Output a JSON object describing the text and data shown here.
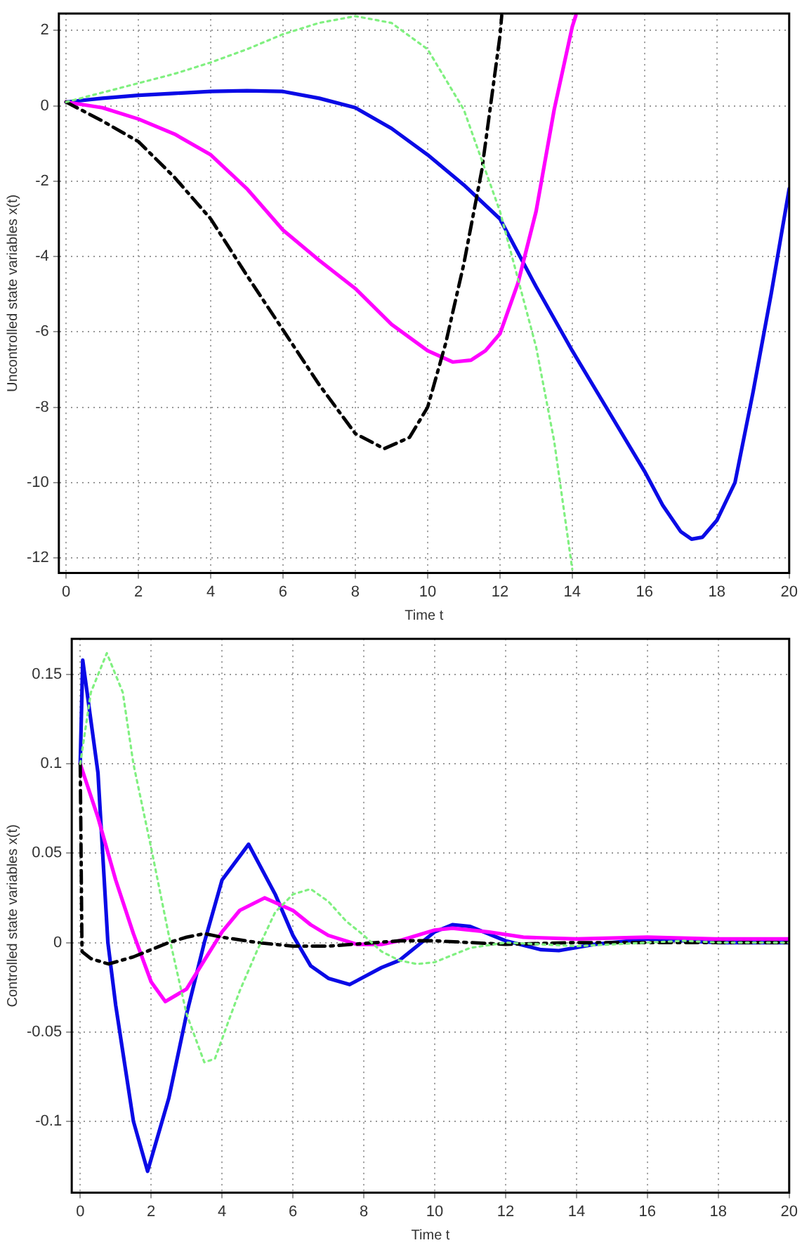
{
  "chart_data": [
    {
      "type": "line",
      "xlabel": "Time t",
      "ylabel": "Uncontrolled state variables x(t)",
      "xlim": [
        -0.2,
        20
      ],
      "ylim": [
        -12.4,
        2.45
      ],
      "xticks": [
        0,
        2,
        4,
        6,
        8,
        10,
        12,
        14,
        16,
        18,
        20
      ],
      "yticks": [
        -12,
        -10,
        -8,
        -6,
        -4,
        -2,
        0,
        2
      ],
      "grid": true,
      "legend": false,
      "series": [
        {
          "color": "#80f080",
          "line_style": "dotted",
          "x": [
            0,
            1,
            2,
            3,
            4,
            5,
            6,
            7,
            8,
            9,
            10,
            11,
            12,
            13,
            13.5,
            14
          ],
          "values": [
            0.1,
            0.35,
            0.6,
            0.85,
            1.15,
            1.5,
            1.9,
            2.2,
            2.38,
            2.2,
            1.5,
            -0.1,
            -2.8,
            -6.4,
            -8.9,
            -12.3
          ]
        },
        {
          "color": "#000000",
          "line_style": "dashed",
          "x": [
            0,
            1,
            2,
            3,
            4,
            5,
            6,
            7,
            8,
            8.8,
            9.5,
            10,
            10.5,
            11,
            11.5,
            12,
            12.05
          ],
          "values": [
            0.1,
            -0.4,
            -0.95,
            -1.9,
            -3.0,
            -4.5,
            -5.95,
            -7.4,
            -8.7,
            -9.1,
            -8.8,
            -8.0,
            -6.3,
            -4.2,
            -1.7,
            1.85,
            2.4
          ]
        },
        {
          "color": "#ff00ff",
          "line_style": "solid",
          "x": [
            0,
            1,
            2,
            3,
            4,
            5,
            6,
            7,
            8,
            9,
            10,
            10.7,
            11.2,
            11.6,
            12,
            12.5,
            13,
            13.5,
            14,
            14.1
          ],
          "values": [
            0.1,
            -0.05,
            -0.35,
            -0.75,
            -1.3,
            -2.2,
            -3.3,
            -4.1,
            -4.85,
            -5.8,
            -6.5,
            -6.8,
            -6.75,
            -6.5,
            -6.05,
            -4.7,
            -2.8,
            -0.1,
            2.1,
            2.4
          ]
        },
        {
          "color": "#0a0ae6",
          "line_style": "solid",
          "x": [
            0,
            1,
            2,
            3,
            4,
            5,
            6,
            7,
            8,
            9,
            10,
            11,
            12,
            13,
            14,
            15,
            16,
            16.5,
            17,
            17.3,
            17.6,
            18,
            18.5,
            19,
            19.5,
            20
          ],
          "values": [
            0.1,
            0.2,
            0.28,
            0.33,
            0.38,
            0.4,
            0.38,
            0.2,
            -0.05,
            -0.6,
            -1.3,
            -2.1,
            -3.0,
            -4.8,
            -6.5,
            -8.1,
            -9.7,
            -10.6,
            -11.3,
            -11.5,
            -11.45,
            -11.0,
            -10.0,
            -7.6,
            -5.0,
            -2.2
          ]
        }
      ]
    },
    {
      "type": "line",
      "xlabel": "Time t",
      "ylabel": "Controlled state variables x(t)",
      "xlim": [
        -0.24,
        20
      ],
      "ylim": [
        -0.14,
        0.17
      ],
      "xticks": [
        0,
        2,
        4,
        6,
        8,
        10,
        12,
        14,
        16,
        18,
        20
      ],
      "yticks": [
        -0.1,
        -0.05,
        0,
        0.05,
        0.1,
        0.15
      ],
      "grid": true,
      "legend": false,
      "series": [
        {
          "color": "#80f080",
          "line_style": "dotted",
          "x": [
            0,
            0.3,
            0.75,
            1.2,
            1.5,
            2,
            2.5,
            3,
            3.5,
            3.8,
            4.2,
            4.5,
            5,
            5.5,
            6,
            6.5,
            7,
            7.5,
            8,
            8.5,
            9,
            9.5,
            10,
            11,
            12,
            13,
            14,
            15,
            16,
            17,
            18,
            20
          ],
          "values": [
            0.1,
            0.14,
            0.162,
            0.14,
            0.1,
            0.053,
            0.004,
            -0.04,
            -0.067,
            -0.065,
            -0.043,
            -0.027,
            -0.004,
            0.017,
            0.027,
            0.03,
            0.023,
            0.012,
            0.004,
            -0.005,
            -0.01,
            -0.012,
            -0.011,
            -0.003,
            0,
            -0.001,
            -0.002,
            -0.001,
            0,
            0.001,
            0,
            0
          ]
        },
        {
          "color": "#000000",
          "line_style": "dashed",
          "x": [
            0,
            0.05,
            0.3,
            0.8,
            1.5,
            2,
            2.5,
            3,
            3.5,
            4,
            5,
            6,
            7,
            8,
            9,
            10,
            12,
            14,
            16,
            18,
            20
          ],
          "values": [
            0.1,
            -0.005,
            -0.009,
            -0.012,
            -0.008,
            -0.004,
            0,
            0.003,
            0.005,
            0.003,
            0,
            -0.002,
            -0.002,
            -0.0005,
            0.001,
            0.001,
            -0.001,
            0,
            0,
            0,
            0
          ]
        },
        {
          "color": "#ff00ff",
          "line_style": "solid",
          "x": [
            0,
            0.5,
            1,
            1.5,
            2,
            2.4,
            3,
            3.5,
            4,
            4.5,
            5.2,
            6,
            6.5,
            7,
            7.8,
            8.5,
            9,
            10,
            10.5,
            11.5,
            12.5,
            14,
            16,
            18,
            20
          ],
          "values": [
            0.1,
            0.07,
            0.035,
            0.005,
            -0.022,
            -0.033,
            -0.026,
            -0.01,
            0.006,
            0.018,
            0.025,
            0.018,
            0.01,
            0.004,
            -0.001,
            -0.001,
            0.001,
            0.007,
            0.008,
            0.006,
            0.003,
            0.002,
            0.003,
            0.002,
            0.002
          ]
        },
        {
          "color": "#0a0ae6",
          "line_style": "solid",
          "x": [
            0,
            0.07,
            0.5,
            0.78,
            1,
            1.5,
            1.9,
            2.5,
            3,
            3.5,
            4,
            4.75,
            5.5,
            6,
            6.5,
            7,
            7.6,
            8.5,
            9,
            10,
            10.5,
            11,
            12,
            13,
            13.5,
            14.5,
            16,
            17,
            18,
            20
          ],
          "values": [
            0.1,
            0.158,
            0.095,
            0,
            -0.035,
            -0.1,
            -0.128,
            -0.087,
            -0.04,
            0,
            0.035,
            0.055,
            0.027,
            0.004,
            -0.013,
            -0.02,
            -0.0235,
            -0.014,
            -0.01,
            0.006,
            0.01,
            0.009,
            0.001,
            -0.004,
            -0.0045,
            -0.001,
            0.002,
            0.001,
            0,
            0
          ]
        }
      ]
    }
  ]
}
